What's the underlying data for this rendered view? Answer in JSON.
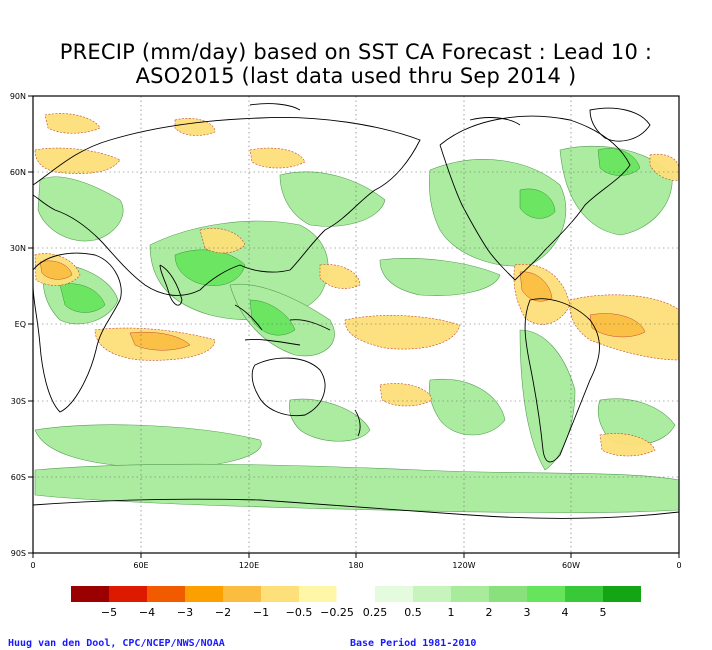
{
  "title_line1": "PRECIP (mm/day) based on SST CA Forecast : Lead 10 :",
  "title_line2": "ASO2015 (last data used thru Sep 2014 )",
  "lat_labels": [
    "90N",
    "60N",
    "30N",
    "EQ",
    "30S",
    "60S",
    "90S"
  ],
  "lon_labels": [
    "0",
    "60E",
    "120E",
    "180",
    "120W",
    "60W",
    "0"
  ],
  "legend": {
    "colors": [
      "#9b0000",
      "#dd1a00",
      "#f25a00",
      "#fba000",
      "#fbbd40",
      "#fde07a",
      "#fff6a8",
      "#ffffff",
      "#e4fbdd",
      "#c7f4bd",
      "#a8eb9b",
      "#8ae07c",
      "#66e55c",
      "#38c838",
      "#14a514"
    ],
    "labels": [
      "−5",
      "−4",
      "−3",
      "−2",
      "−1",
      "−0.5",
      "−0.25",
      "0.25",
      "0.5",
      "1",
      "2",
      "3",
      "4",
      "5"
    ]
  },
  "footer_left": "Huug van den Dool, CPC/NCEP/NWS/NOAA",
  "footer_right": "Base Period 1981-2010"
}
